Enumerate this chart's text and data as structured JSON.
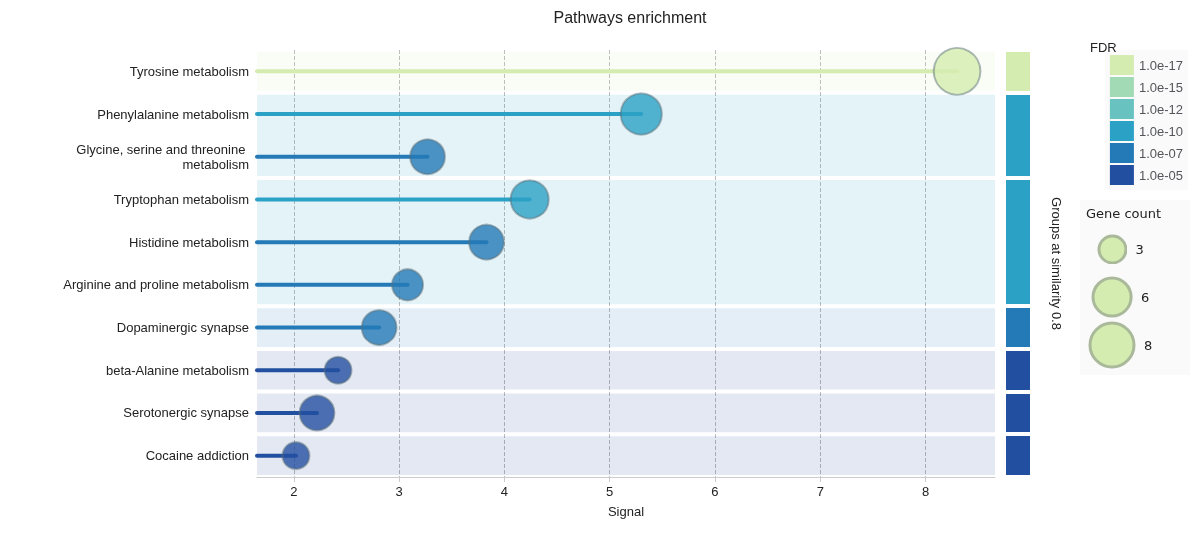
{
  "chart_data": {
    "type": "lollipop",
    "orientation": "horizontal",
    "title": "Pathways enrichment",
    "xlabel": "Signal",
    "y2label": "Groups at similarity 0.8",
    "legend_title": "FDR",
    "categories": [
      "Tyrosine metabolism",
      "Phenylalanine metabolism",
      "Glycine, serine and threonine metabolism",
      "Tryptophan metabolism",
      "Histidine metabolism",
      "Arginine and proline metabolism",
      "Dopaminergic synapse",
      "beta-Alanine metabolism",
      "Serotonergic synapse",
      "Cocaine addiction"
    ],
    "series": [
      {
        "name": "1.0e-17",
        "color": "#d4ecb0",
        "values": [
          8.3,
          null,
          null,
          null,
          null,
          null,
          null,
          null,
          null,
          null
        ],
        "sizes": [
          9,
          null,
          null,
          null,
          null,
          null,
          null,
          null,
          null,
          null
        ]
      },
      {
        "name": "1.0e-15",
        "color": "#a1dab4",
        "values": [
          null,
          null,
          null,
          null,
          null,
          null,
          null,
          null,
          null,
          null
        ],
        "sizes": [
          null,
          null,
          null,
          null,
          null,
          null,
          null,
          null,
          null,
          null
        ]
      },
      {
        "name": "1.0e-12",
        "color": "#67c2c0",
        "values": [
          null,
          null,
          null,
          null,
          null,
          null,
          null,
          null,
          null,
          null
        ],
        "sizes": [
          null,
          null,
          null,
          null,
          null,
          null,
          null,
          null,
          null,
          null
        ]
      },
      {
        "name": "1.0e-10",
        "color": "#2ca1c6",
        "values": [
          null,
          5.3,
          null,
          4.24,
          null,
          null,
          null,
          null,
          null,
          null
        ],
        "sizes": [
          null,
          7,
          null,
          6,
          null,
          null,
          null,
          null,
          null,
          null
        ]
      },
      {
        "name": "1.0e-07",
        "color": "#2479b7",
        "values": [
          null,
          null,
          3.27,
          null,
          3.83,
          3.08,
          2.81,
          null,
          null,
          null
        ],
        "sizes": [
          null,
          null,
          5,
          null,
          5,
          4,
          5,
          null,
          null,
          null
        ]
      },
      {
        "name": "1.0e-05",
        "color": "#234fa0",
        "values": [
          null,
          null,
          null,
          null,
          null,
          null,
          null,
          2.42,
          2.22,
          2.02
        ],
        "sizes": [
          null,
          null,
          null,
          null,
          null,
          null,
          null,
          3,
          5,
          3
        ]
      }
    ],
    "size_legend": [
      3,
      6,
      8
    ],
    "annotations": [
      "Gene count"
    ],
    "xlim": [
      1.65,
      8.66
    ],
    "xticks": [
      2,
      3,
      4,
      5,
      6,
      7,
      8
    ],
    "grid": "x",
    "legend": "right",
    "bands": [
      {
        "axis": "y",
        "from": "Tyrosine metabolism",
        "to": "Tyrosine metabolism",
        "label": null,
        "color": "#d4ecb0"
      },
      {
        "axis": "y",
        "from": "Phenylalanine metabolism",
        "to": "Glycine, serine and threonine metabolism",
        "label": null,
        "color": "#2ca1c6"
      },
      {
        "axis": "y",
        "from": "Tryptophan metabolism",
        "to": "Arginine and proline metabolism",
        "label": null,
        "color": "#2ca1c6"
      },
      {
        "axis": "y",
        "from": "Dopaminergic synapse",
        "to": "Dopaminergic synapse",
        "label": null,
        "color": "#2479b7"
      },
      {
        "axis": "y",
        "from": "beta-Alanine metabolism",
        "to": "beta-Alanine metabolism",
        "label": null,
        "color": "#234fa0"
      },
      {
        "axis": "y",
        "from": "Serotonergic synapse",
        "to": "Serotonergic synapse",
        "label": null,
        "color": "#234fa0"
      },
      {
        "axis": "y",
        "from": "Cocaine addiction",
        "to": "Cocaine addiction",
        "label": null,
        "color": "#234fa0"
      }
    ]
  }
}
